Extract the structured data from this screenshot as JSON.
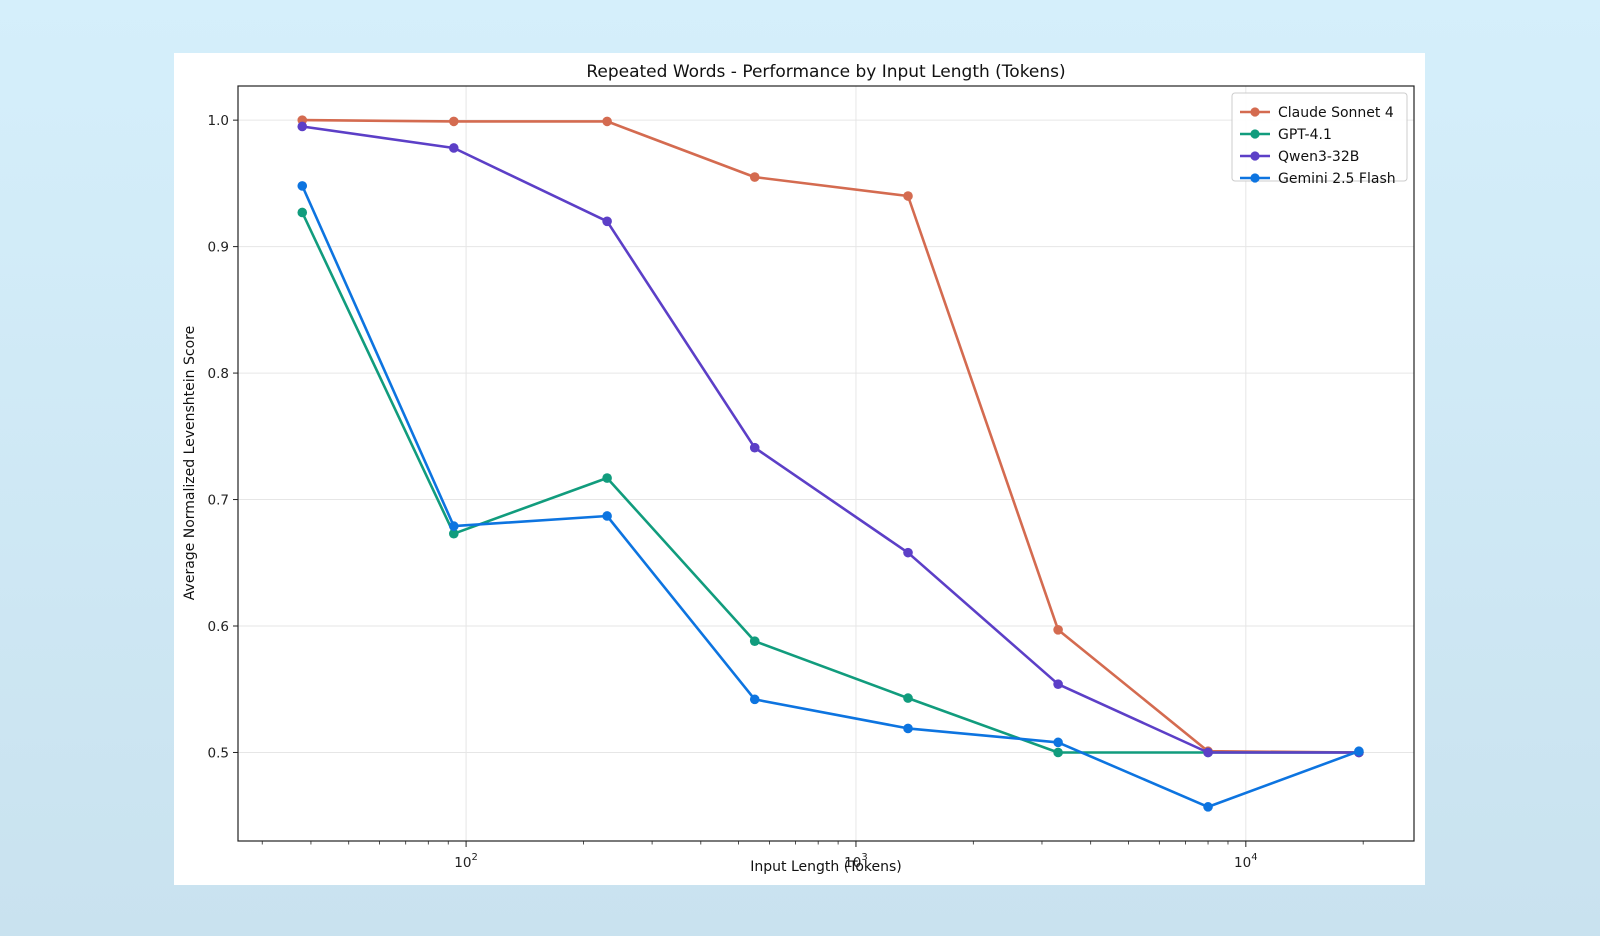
{
  "chart_data": {
    "type": "line",
    "title": "Repeated Words - Performance by Input Length (Tokens)",
    "xlabel": "Input Length (Tokens)",
    "ylabel": "Average Normalized Levenshtein Score",
    "x_scale": "log",
    "xlim": [
      26,
      27000
    ],
    "ylim": [
      0.43,
      1.027
    ],
    "x_ticks": [
      {
        "value": 100,
        "base": "10",
        "exp": "2"
      },
      {
        "value": 1000,
        "base": "10",
        "exp": "3"
      },
      {
        "value": 10000,
        "base": "10",
        "exp": "4"
      }
    ],
    "y_ticks": [
      {
        "value": 0.5,
        "label": "0.5"
      },
      {
        "value": 0.6,
        "label": "0.6"
      },
      {
        "value": 0.7,
        "label": "0.7"
      },
      {
        "value": 0.8,
        "label": "0.8"
      },
      {
        "value": 0.9,
        "label": "0.9"
      },
      {
        "value": 1.0,
        "label": "1.0"
      }
    ],
    "grid": true,
    "legend_position": "top-right",
    "x": [
      38,
      93,
      230,
      550,
      1360,
      3300,
      8000,
      19500
    ],
    "series": [
      {
        "name": "Claude Sonnet 4",
        "color": "#d46b50",
        "values": [
          1.0,
          0.999,
          0.999,
          0.955,
          0.94,
          0.597,
          0.501,
          0.5
        ]
      },
      {
        "name": "GPT-4.1",
        "color": "#119c7d",
        "values": [
          0.927,
          0.673,
          0.717,
          0.588,
          0.543,
          0.5,
          0.5,
          0.5
        ]
      },
      {
        "name": "Qwen3-32B",
        "color": "#5c3fc7",
        "values": [
          0.995,
          0.978,
          0.92,
          0.741,
          0.658,
          0.554,
          0.5,
          0.5
        ]
      },
      {
        "name": "Gemini 2.5 Flash",
        "color": "#0d74e0",
        "values": [
          0.948,
          0.679,
          0.687,
          0.542,
          0.519,
          0.508,
          0.457,
          0.501
        ]
      }
    ]
  }
}
